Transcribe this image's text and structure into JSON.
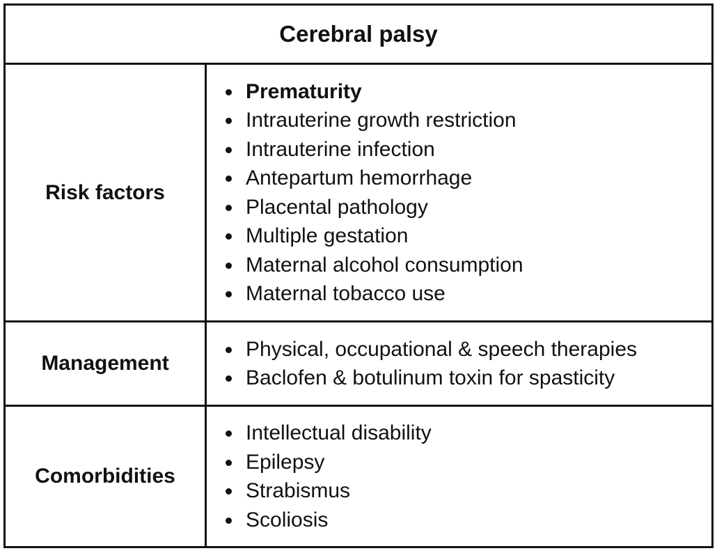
{
  "table": {
    "title": "Cerebral palsy",
    "rows": [
      {
        "label": "Risk factors",
        "items": [
          "Prematurity",
          "Intrauterine growth restriction",
          "Intrauterine infection",
          "Antepartum hemorrhage",
          "Placental pathology",
          "Multiple gestation",
          "Maternal alcohol consumption",
          "Maternal tobacco use"
        ]
      },
      {
        "label": "Management",
        "items": [
          "Physical, occupational & speech therapies",
          "Baclofen & botulinum toxin for spasticity"
        ]
      },
      {
        "label": "Comorbidities",
        "items": [
          "Intellectual disability",
          "Epilepsy",
          "Strabismus",
          "Scoliosis"
        ]
      }
    ]
  }
}
